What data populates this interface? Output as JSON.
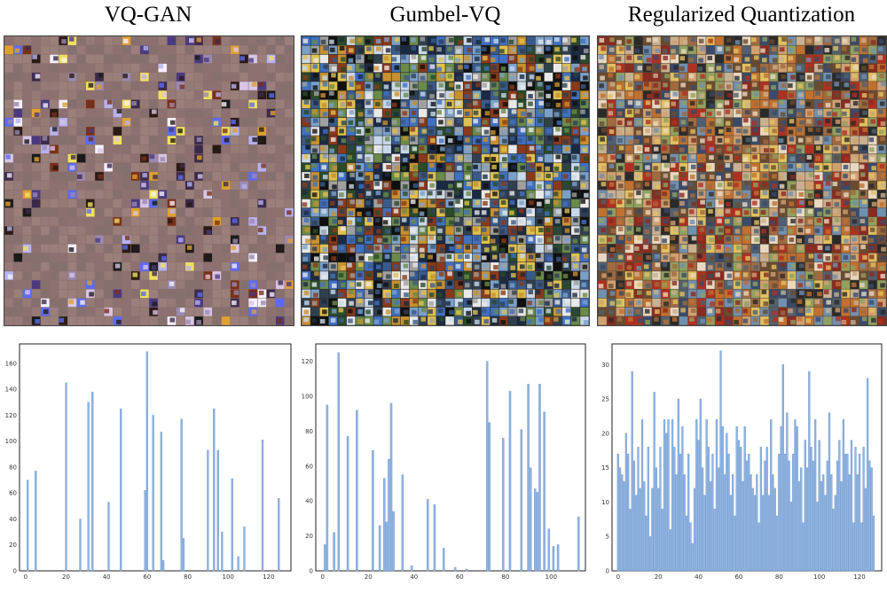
{
  "panels": [
    {
      "title": "VQ-GAN",
      "mosaic": {
        "style": "sparse",
        "base_color": "#8c6f6e",
        "active_fraction": 0.2
      }
    },
    {
      "title": "Gumbel-VQ",
      "mosaic": {
        "style": "dense",
        "base_color": "#2a2a2a",
        "active_fraction": 1.0
      }
    },
    {
      "title": "Regularized Quantization",
      "mosaic": {
        "style": "dense",
        "base_color": "#5a4a3a",
        "active_fraction": 1.0
      }
    }
  ],
  "bar_color": "#91b4e0",
  "bar_edge_color": "#6f98cf",
  "chart_data": [
    {
      "type": "bar",
      "title": "VQ-GAN",
      "xlabel": "",
      "ylabel": "",
      "xlim": [
        -3,
        131
      ],
      "ylim": [
        0,
        175
      ],
      "xticks": [
        0,
        20,
        40,
        60,
        80,
        100,
        120
      ],
      "yticks": [
        0,
        20,
        40,
        60,
        80,
        100,
        120,
        140,
        160
      ],
      "grid": false,
      "x": [
        1,
        5,
        20,
        27,
        31,
        33,
        41,
        47,
        59,
        60,
        63,
        67,
        68,
        77,
        78,
        90,
        93,
        95,
        97,
        102,
        105,
        108,
        117,
        125
      ],
      "values": [
        70,
        77,
        145,
        40,
        130,
        138,
        53,
        125,
        62,
        169,
        120,
        107,
        8,
        117,
        25,
        93,
        125,
        93,
        30,
        71,
        11,
        34,
        101,
        56
      ]
    },
    {
      "type": "bar",
      "title": "Gumbel-VQ",
      "xlabel": "",
      "ylabel": "",
      "xlim": [
        -3,
        115
      ],
      "ylim": [
        0,
        130
      ],
      "xticks": [
        0,
        20,
        40,
        60,
        80,
        100
      ],
      "yticks": [
        0,
        20,
        40,
        60,
        80,
        100,
        120
      ],
      "grid": false,
      "x": [
        1,
        2,
        5,
        7,
        11,
        15,
        22,
        25,
        27,
        28,
        29,
        30,
        31,
        35,
        39,
        46,
        49,
        53,
        58,
        63,
        72,
        73,
        79,
        82,
        87,
        90,
        91,
        93,
        94,
        95,
        97,
        99,
        101,
        103,
        112
      ],
      "values": [
        15,
        95,
        22,
        125,
        77,
        92,
        69,
        26,
        53,
        28,
        64,
        96,
        34,
        55,
        3,
        41,
        38,
        13,
        2,
        1,
        120,
        85,
        76,
        103,
        81,
        107,
        59,
        47,
        45,
        107,
        91,
        24,
        14,
        15,
        31
      ]
    },
    {
      "type": "bar",
      "title": "Regularized Quantization",
      "xlabel": "",
      "ylabel": "",
      "xlim": [
        -3,
        131
      ],
      "ylim": [
        0,
        33
      ],
      "xticks": [
        0,
        20,
        40,
        60,
        80,
        100,
        120
      ],
      "yticks": [
        0,
        5,
        10,
        15,
        20,
        25,
        30
      ],
      "grid": false,
      "x": [
        0,
        1,
        2,
        3,
        4,
        5,
        6,
        7,
        8,
        9,
        10,
        11,
        12,
        13,
        14,
        15,
        16,
        17,
        18,
        19,
        20,
        21,
        22,
        23,
        24,
        25,
        26,
        27,
        28,
        29,
        30,
        31,
        32,
        33,
        34,
        35,
        36,
        37,
        38,
        39,
        40,
        41,
        42,
        43,
        44,
        45,
        46,
        47,
        48,
        49,
        50,
        51,
        52,
        53,
        54,
        55,
        56,
        57,
        58,
        59,
        60,
        61,
        62,
        63,
        64,
        65,
        66,
        67,
        68,
        69,
        70,
        71,
        72,
        73,
        74,
        75,
        76,
        77,
        78,
        79,
        80,
        81,
        82,
        83,
        84,
        85,
        86,
        87,
        88,
        89,
        90,
        91,
        92,
        93,
        94,
        95,
        96,
        97,
        98,
        99,
        100,
        101,
        102,
        103,
        104,
        105,
        106,
        107,
        108,
        109,
        110,
        111,
        112,
        113,
        114,
        115,
        116,
        117,
        118,
        119,
        120,
        121,
        122,
        123,
        124,
        125,
        126,
        127
      ],
      "values": [
        17,
        15,
        14,
        13,
        20,
        17,
        9,
        29,
        16,
        11,
        18,
        12,
        22,
        13,
        8,
        18,
        5,
        12,
        26,
        15,
        12,
        18,
        9,
        22,
        20,
        22,
        6,
        22,
        18,
        14,
        25,
        17,
        21,
        14,
        8,
        17,
        7,
        4,
        12,
        22,
        19,
        25,
        15,
        11,
        22,
        18,
        13,
        17,
        9,
        22,
        15,
        32,
        21,
        14,
        20,
        17,
        11,
        14,
        8,
        21,
        19,
        18,
        13,
        21,
        16,
        17,
        14,
        12,
        11,
        14,
        7,
        18,
        11,
        16,
        18,
        11,
        22,
        14,
        12,
        8,
        17,
        21,
        30,
        17,
        23,
        16,
        10,
        17,
        22,
        21,
        13,
        15,
        7,
        19,
        15,
        29,
        18,
        16,
        22,
        10,
        19,
        13,
        14,
        11,
        16,
        23,
        14,
        9,
        11,
        16,
        19,
        13,
        22,
        17,
        17,
        14,
        19,
        7,
        18,
        14,
        17,
        7,
        18,
        12,
        28,
        16,
        15,
        8
      ]
    }
  ]
}
